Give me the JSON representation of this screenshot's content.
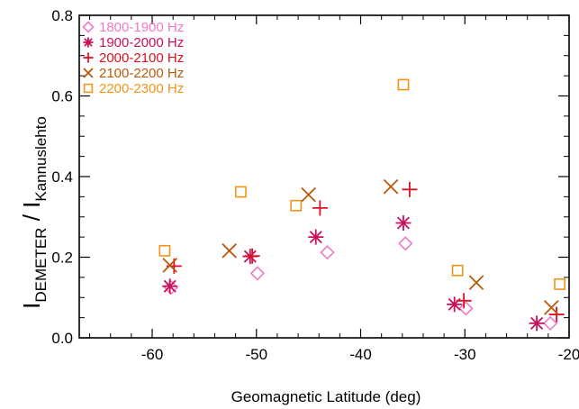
{
  "chart_data": {
    "type": "scatter",
    "xlabel": "Geomagnetic Latitude (deg)",
    "ylabel": {
      "main": "I",
      "sub1": "DEMETER",
      "sep": " / I",
      "sub2": "Kannuslehto"
    },
    "xlim": [
      -67,
      -20
    ],
    "ylim": [
      0.0,
      0.8
    ],
    "x_ticks": [
      -60,
      -50,
      -40,
      -30,
      -20
    ],
    "x_tick_labels": [
      "-60",
      "-50",
      "-40",
      "-30",
      "-20"
    ],
    "y_ticks": [
      0.0,
      0.2,
      0.4,
      0.6,
      0.8
    ],
    "y_tick_labels": [
      "0.0",
      "0.2",
      "0.4",
      "0.6",
      "0.8"
    ],
    "grid": false,
    "legend_position": "top-left",
    "series": [
      {
        "name": "1800-1900 Hz",
        "marker": "diamond",
        "color": "#f07ac8",
        "points": [
          [
            -58.2,
            0.125
          ],
          [
            -49.9,
            0.16
          ],
          [
            -43.2,
            0.212
          ],
          [
            -35.7,
            0.234
          ],
          [
            -29.9,
            0.073
          ],
          [
            -21.8,
            0.036
          ]
        ]
      },
      {
        "name": "1900-2000 Hz",
        "marker": "asterisk",
        "color": "#c8105a",
        "points": [
          [
            -58.3,
            0.128
          ],
          [
            -50.6,
            0.202
          ],
          [
            -44.3,
            0.25
          ],
          [
            -35.9,
            0.285
          ],
          [
            -31.0,
            0.083
          ],
          [
            -23.1,
            0.036
          ]
        ]
      },
      {
        "name": "2000-2100 Hz",
        "marker": "plus",
        "color": "#e0101e",
        "points": [
          [
            -57.9,
            0.178
          ],
          [
            -50.4,
            0.203
          ],
          [
            -43.9,
            0.322
          ],
          [
            -35.3,
            0.368
          ],
          [
            -30.1,
            0.092
          ],
          [
            -21.2,
            0.058
          ]
        ]
      },
      {
        "name": "2100-2200 Hz",
        "marker": "x",
        "color": "#b85808",
        "points": [
          [
            -58.3,
            0.18
          ],
          [
            -52.6,
            0.216
          ],
          [
            -45.0,
            0.355
          ],
          [
            -37.1,
            0.375
          ],
          [
            -28.9,
            0.137
          ],
          [
            -21.7,
            0.075
          ]
        ]
      },
      {
        "name": "2200-2300 Hz",
        "marker": "square",
        "color": "#f29418",
        "points": [
          [
            -58.8,
            0.216
          ],
          [
            -51.5,
            0.362
          ],
          [
            -46.2,
            0.328
          ],
          [
            -35.9,
            0.628
          ],
          [
            -30.7,
            0.167
          ],
          [
            -20.9,
            0.133
          ]
        ]
      }
    ]
  }
}
